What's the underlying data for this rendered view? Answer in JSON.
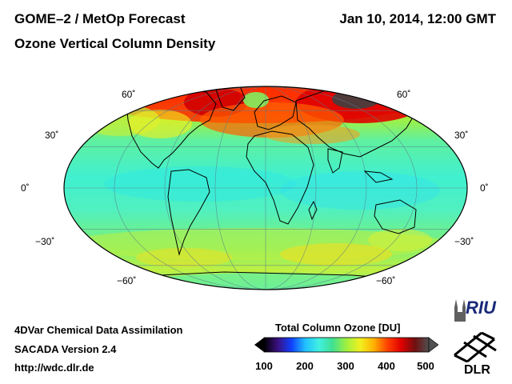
{
  "header": {
    "title_line1": "GOME–2 / MetOp Forecast",
    "title_line2": "Ozone Vertical Column Density",
    "datetime": "Jan 10, 2014, 12:00 GMT"
  },
  "latitude_labels": {
    "north_60": "60˚",
    "north_30": "30˚",
    "equator": "0˚",
    "south_30": "−30˚",
    "south_60": "−60˚"
  },
  "map": {
    "projection": "Mollweide",
    "variable": "Total Column Ozone",
    "unit": "DU",
    "graticule_lat_deg": [
      -60,
      -30,
      0,
      30,
      60
    ],
    "graticule_lon_deg": [
      -180,
      -135,
      -90,
      -45,
      0,
      45,
      90,
      135,
      180
    ]
  },
  "colorbar": {
    "title": "Total Column Ozone [DU]",
    "min": 100,
    "max": 500,
    "ticks": [
      "100",
      "200",
      "300",
      "400",
      "500"
    ],
    "colors": [
      "#000000",
      "#3a1080",
      "#1040ff",
      "#20c0ff",
      "#40f0e0",
      "#40e090",
      "#a0f040",
      "#f0f020",
      "#ffb000",
      "#ff4000",
      "#e00000",
      "#701010",
      "#505050"
    ]
  },
  "footer": {
    "line1": "4DVar Chemical Data Assimilation",
    "line2": "SACADA Version 2.4",
    "line3": "http://wdc.dlr.de"
  },
  "logos": {
    "riu": "RIU",
    "dlr": "DLR"
  }
}
